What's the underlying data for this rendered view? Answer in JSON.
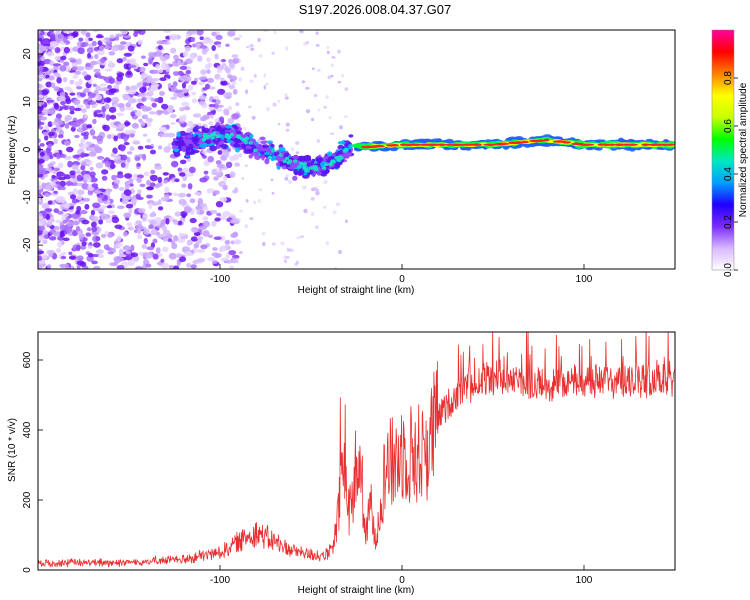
{
  "figure_title": "S197.2026.008.04.37.G07",
  "chart_data": [
    {
      "type": "heatmap",
      "title": "S197.2026.008.04.37.G07",
      "xlabel": "Height of straight line (km)",
      "ylabel": "Frequency (Hz)",
      "xlim": [
        -200,
        150
      ],
      "ylim": [
        -25,
        25
      ],
      "x_ticks": [
        -100,
        0,
        100
      ],
      "y_ticks": [
        -20,
        -10,
        0,
        10,
        20
      ],
      "colorbar": {
        "label": "Normalized spectral amplitude",
        "range": [
          0.0,
          1.0
        ],
        "ticks": [
          0.0,
          0.2,
          0.4,
          0.6,
          0.8
        ],
        "colormap": [
          "#ffffff",
          "#d8b8ff",
          "#7a2bff",
          "#2000ff",
          "#00a0ff",
          "#00e8c0",
          "#00ff00",
          "#c8ff00",
          "#ffff00",
          "#ff8000",
          "#ff0000",
          "#ff00a0"
        ]
      },
      "signal_track": [
        {
          "x": -115,
          "freq": 2.0
        },
        {
          "x": -100,
          "freq": 3.0
        },
        {
          "x": -90,
          "freq": 2.5
        },
        {
          "x": -80,
          "freq": 0.0
        },
        {
          "x": -70,
          "freq": -1.0
        },
        {
          "x": -60,
          "freq": -3.0
        },
        {
          "x": -50,
          "freq": -4.0
        },
        {
          "x": -40,
          "freq": -3.0
        },
        {
          "x": -33,
          "freq": -1.0
        },
        {
          "x": -28,
          "freq": 1.0
        },
        {
          "x": -20,
          "freq": 0.5
        },
        {
          "x": 0,
          "freq": 1.0
        },
        {
          "x": 50,
          "freq": 1.0
        },
        {
          "x": 80,
          "freq": 2.0
        },
        {
          "x": 100,
          "freq": 1.0
        },
        {
          "x": 150,
          "freq": 1.0
        }
      ]
    },
    {
      "type": "line",
      "xlabel": "Height of straight line (km)",
      "ylabel": "SNR (10 * v/v)",
      "xlim": [
        -200,
        150
      ],
      "ylim": [
        0,
        680
      ],
      "x_ticks": [
        -100,
        0,
        100
      ],
      "y_ticks": [
        0,
        200,
        400,
        600
      ],
      "series": [
        {
          "name": "SNR",
          "color": "#e83030",
          "x": [
            -200,
            -150,
            -120,
            -100,
            -90,
            -80,
            -70,
            -60,
            -50,
            -42,
            -38,
            -35,
            -33,
            -30,
            -28,
            -25,
            -22,
            -20,
            -17,
            -15,
            -12,
            -10,
            -8,
            -5,
            0,
            5,
            10,
            15,
            20,
            25,
            30,
            40,
            50,
            60,
            75,
            100,
            125,
            150
          ],
          "values": [
            20,
            22,
            30,
            50,
            80,
            110,
            80,
            55,
            45,
            40,
            60,
            150,
            300,
            200,
            170,
            310,
            250,
            80,
            200,
            80,
            180,
            260,
            310,
            300,
            340,
            330,
            330,
            360,
            440,
            470,
            500,
            540,
            550,
            550,
            530,
            540,
            540,
            550
          ]
        }
      ]
    }
  ]
}
